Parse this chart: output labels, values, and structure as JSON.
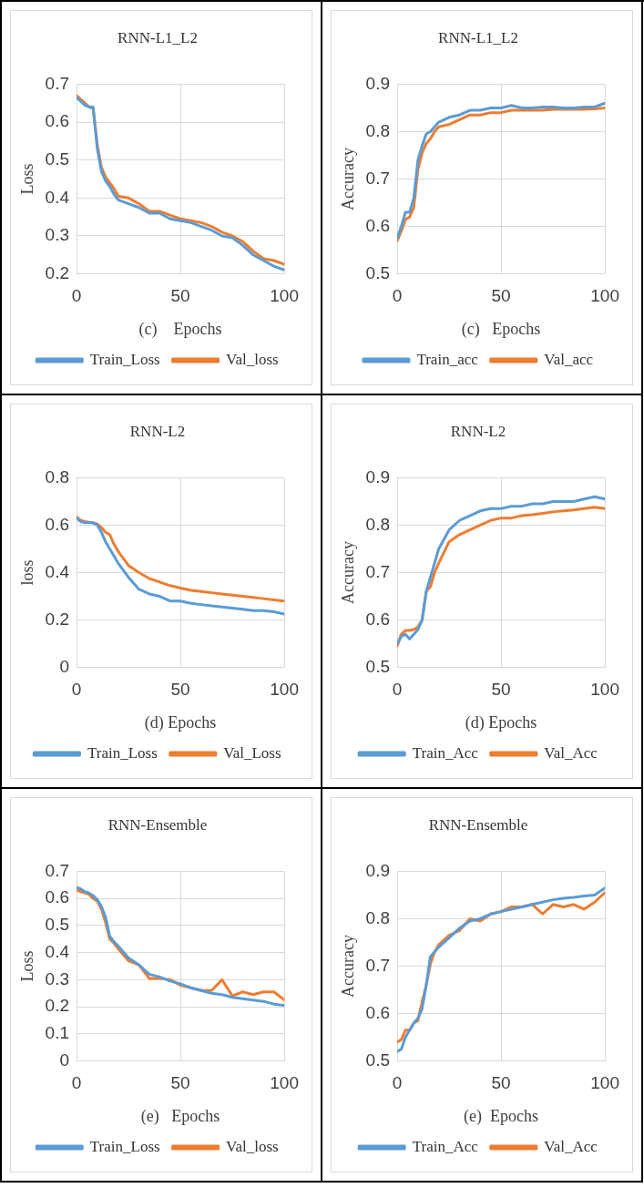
{
  "chart_data": [
    {
      "type": "line",
      "title": "RNN-L1_L2",
      "xlabel": "(c)    Epochs",
      "ylabel": "Loss",
      "x": [
        0,
        2,
        4,
        6,
        8,
        10,
        12,
        14,
        16,
        18,
        20,
        25,
        30,
        35,
        40,
        45,
        50,
        55,
        60,
        65,
        70,
        75,
        80,
        85,
        90,
        95,
        100
      ],
      "xlim": [
        0,
        100
      ],
      "xticks": [
        0,
        50,
        100
      ],
      "ylim": [
        0.2,
        0.7
      ],
      "yticks": [
        0.2,
        0.3,
        0.4,
        0.5,
        0.6,
        0.7
      ],
      "grid": true,
      "legend": "bottom",
      "series": [
        {
          "name": "Train_Loss",
          "color": "#5b9bd5",
          "values": [
            0.665,
            0.655,
            0.645,
            0.64,
            0.64,
            0.53,
            0.47,
            0.445,
            0.43,
            0.41,
            0.395,
            0.385,
            0.375,
            0.36,
            0.36,
            0.345,
            0.34,
            0.335,
            0.325,
            0.315,
            0.3,
            0.295,
            0.275,
            0.25,
            0.235,
            0.22,
            0.21
          ]
        },
        {
          "name": "Val_loss",
          "color": "#ed7d31",
          "values": [
            0.67,
            0.66,
            0.65,
            0.64,
            0.635,
            0.54,
            0.48,
            0.455,
            0.44,
            0.425,
            0.405,
            0.4,
            0.385,
            0.365,
            0.365,
            0.355,
            0.345,
            0.34,
            0.335,
            0.325,
            0.31,
            0.3,
            0.285,
            0.26,
            0.24,
            0.235,
            0.225
          ]
        }
      ]
    },
    {
      "type": "line",
      "title": "RNN-L1_L2",
      "xlabel": "(c)   Epochs",
      "ylabel": "Accuracy",
      "x": [
        0,
        2,
        4,
        6,
        8,
        10,
        12,
        14,
        16,
        18,
        20,
        25,
        30,
        35,
        40,
        45,
        50,
        55,
        60,
        65,
        70,
        75,
        80,
        85,
        90,
        95,
        100
      ],
      "xlim": [
        0,
        100
      ],
      "xticks": [
        0,
        50,
        100
      ],
      "ylim": [
        0.5,
        0.9
      ],
      "yticks": [
        0.5,
        0.6,
        0.7,
        0.8,
        0.9
      ],
      "grid": true,
      "legend": "bottom",
      "series": [
        {
          "name": "Train_acc",
          "color": "#5b9bd5",
          "values": [
            0.575,
            0.6,
            0.63,
            0.63,
            0.66,
            0.74,
            0.77,
            0.795,
            0.8,
            0.81,
            0.82,
            0.83,
            0.835,
            0.845,
            0.845,
            0.85,
            0.85,
            0.855,
            0.85,
            0.85,
            0.852,
            0.852,
            0.85,
            0.85,
            0.852,
            0.852,
            0.86
          ]
        },
        {
          "name": "Val_acc",
          "color": "#ed7d31",
          "values": [
            0.57,
            0.59,
            0.615,
            0.62,
            0.64,
            0.72,
            0.755,
            0.775,
            0.785,
            0.8,
            0.81,
            0.815,
            0.825,
            0.835,
            0.835,
            0.84,
            0.84,
            0.845,
            0.845,
            0.845,
            0.845,
            0.847,
            0.847,
            0.847,
            0.847,
            0.848,
            0.85
          ]
        }
      ]
    },
    {
      "type": "line",
      "title": "RNN-L2",
      "xlabel": "(d) Epochs",
      "ylabel": "loss",
      "x": [
        0,
        2,
        4,
        6,
        8,
        10,
        12,
        14,
        16,
        18,
        20,
        25,
        30,
        35,
        40,
        45,
        50,
        55,
        60,
        65,
        70,
        75,
        80,
        85,
        90,
        95,
        100
      ],
      "xlim": [
        0,
        100
      ],
      "xticks": [
        0,
        50,
        100
      ],
      "ylim": [
        0,
        0.8
      ],
      "yticks": [
        0,
        0.2,
        0.4,
        0.6,
        0.8
      ],
      "grid": true,
      "legend": "bottom",
      "series": [
        {
          "name": "Train_Loss",
          "color": "#5b9bd5",
          "values": [
            0.63,
            0.615,
            0.61,
            0.61,
            0.61,
            0.6,
            0.57,
            0.53,
            0.5,
            0.47,
            0.44,
            0.38,
            0.33,
            0.31,
            0.3,
            0.28,
            0.28,
            0.27,
            0.265,
            0.26,
            0.255,
            0.25,
            0.245,
            0.24,
            0.24,
            0.235,
            0.225
          ]
        },
        {
          "name": "Val_Loss",
          "color": "#ed7d31",
          "values": [
            0.635,
            0.62,
            0.615,
            0.612,
            0.61,
            0.605,
            0.59,
            0.57,
            0.56,
            0.52,
            0.49,
            0.43,
            0.4,
            0.375,
            0.36,
            0.345,
            0.335,
            0.325,
            0.32,
            0.315,
            0.31,
            0.305,
            0.3,
            0.295,
            0.29,
            0.285,
            0.28
          ]
        }
      ]
    },
    {
      "type": "line",
      "title": "RNN-L2",
      "xlabel": "(d) Epochs",
      "ylabel": "Accuracy",
      "x": [
        0,
        2,
        4,
        6,
        8,
        10,
        12,
        14,
        16,
        18,
        20,
        25,
        30,
        35,
        40,
        45,
        50,
        55,
        60,
        65,
        70,
        75,
        80,
        85,
        90,
        95,
        100
      ],
      "xlim": [
        0,
        100
      ],
      "xticks": [
        0,
        50,
        100
      ],
      "ylim": [
        0.5,
        0.9
      ],
      "yticks": [
        0.5,
        0.6,
        0.7,
        0.8,
        0.9
      ],
      "grid": true,
      "legend": "bottom",
      "series": [
        {
          "name": "Train_Acc",
          "color": "#5b9bd5",
          "values": [
            0.55,
            0.565,
            0.57,
            0.56,
            0.57,
            0.58,
            0.6,
            0.66,
            0.69,
            0.72,
            0.75,
            0.79,
            0.81,
            0.82,
            0.83,
            0.835,
            0.835,
            0.84,
            0.84,
            0.845,
            0.845,
            0.85,
            0.85,
            0.85,
            0.855,
            0.86,
            0.855
          ]
        },
        {
          "name": "Val_Acc",
          "color": "#ed7d31",
          "values": [
            0.545,
            0.57,
            0.578,
            0.578,
            0.58,
            0.585,
            0.6,
            0.66,
            0.67,
            0.7,
            0.72,
            0.765,
            0.78,
            0.79,
            0.8,
            0.81,
            0.815,
            0.815,
            0.82,
            0.822,
            0.825,
            0.828,
            0.83,
            0.832,
            0.835,
            0.838,
            0.835
          ]
        }
      ]
    },
    {
      "type": "line",
      "title": "RNN-Ensemble",
      "xlabel": "(e)   Epochs",
      "ylabel": "Loss",
      "x": [
        0,
        2,
        4,
        6,
        8,
        10,
        12,
        14,
        16,
        18,
        20,
        25,
        30,
        35,
        40,
        45,
        50,
        55,
        60,
        65,
        70,
        75,
        80,
        85,
        90,
        95,
        100
      ],
      "xlim": [
        0,
        100
      ],
      "xticks": [
        0,
        50,
        100
      ],
      "ylim": [
        0,
        0.7
      ],
      "yticks": [
        0,
        0.1,
        0.2,
        0.3,
        0.4,
        0.5,
        0.6,
        0.7
      ],
      "grid": true,
      "legend": "bottom",
      "series": [
        {
          "name": "Train_Loss",
          "color": "#5b9bd5",
          "values": [
            0.64,
            0.635,
            0.625,
            0.62,
            0.61,
            0.595,
            0.57,
            0.53,
            0.46,
            0.44,
            0.425,
            0.38,
            0.355,
            0.32,
            0.31,
            0.295,
            0.285,
            0.27,
            0.26,
            0.25,
            0.245,
            0.235,
            0.23,
            0.225,
            0.22,
            0.21,
            0.205
          ]
        },
        {
          "name": "Val_loss",
          "color": "#ed7d31",
          "values": [
            0.63,
            0.625,
            0.62,
            0.615,
            0.6,
            0.59,
            0.56,
            0.51,
            0.45,
            0.435,
            0.415,
            0.37,
            0.355,
            0.305,
            0.305,
            0.3,
            0.28,
            0.27,
            0.26,
            0.26,
            0.3,
            0.24,
            0.255,
            0.245,
            0.255,
            0.255,
            0.225
          ]
        }
      ]
    },
    {
      "type": "line",
      "title": "RNN-Ensemble",
      "xlabel": "(e)  Epochs",
      "ylabel": "Accuracy",
      "x": [
        0,
        2,
        4,
        6,
        8,
        10,
        12,
        14,
        16,
        18,
        20,
        25,
        30,
        35,
        40,
        45,
        50,
        55,
        60,
        65,
        70,
        75,
        80,
        85,
        90,
        95,
        100
      ],
      "xlim": [
        0,
        100
      ],
      "xticks": [
        0,
        50,
        100
      ],
      "ylim": [
        0.5,
        0.9
      ],
      "yticks": [
        0.5,
        0.6,
        0.7,
        0.8,
        0.9
      ],
      "grid": true,
      "legend": "bottom",
      "series": [
        {
          "name": "Train_Acc",
          "color": "#5b9bd5",
          "values": [
            0.52,
            0.525,
            0.55,
            0.565,
            0.58,
            0.59,
            0.61,
            0.66,
            0.72,
            0.73,
            0.74,
            0.76,
            0.78,
            0.795,
            0.8,
            0.81,
            0.815,
            0.82,
            0.825,
            0.83,
            0.835,
            0.84,
            0.843,
            0.845,
            0.848,
            0.85,
            0.865
          ]
        },
        {
          "name": "Val_Acc",
          "color": "#ed7d31",
          "values": [
            0.54,
            0.545,
            0.565,
            0.565,
            0.58,
            0.585,
            0.625,
            0.66,
            0.705,
            0.73,
            0.745,
            0.765,
            0.775,
            0.8,
            0.795,
            0.81,
            0.815,
            0.825,
            0.825,
            0.83,
            0.81,
            0.83,
            0.825,
            0.83,
            0.82,
            0.835,
            0.855
          ]
        }
      ]
    }
  ]
}
